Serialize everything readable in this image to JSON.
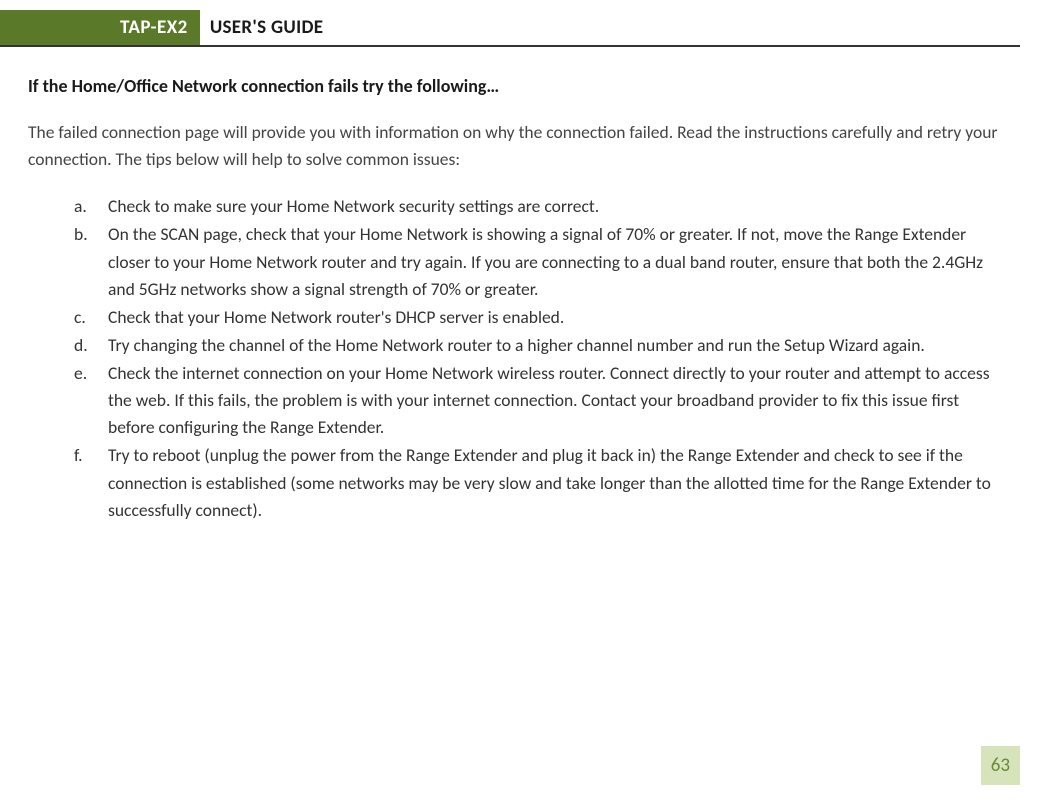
{
  "header": {
    "logo_text": "TAP-EX2",
    "title": "USER'S GUIDE",
    "logo_bg_color": "#5a7a2a",
    "logo_text_color": "#ffffff",
    "underline_color": "#333333"
  },
  "content": {
    "subheading": "If the Home/Office Network connection fails try the following…",
    "intro": "The failed connection page will provide you with information on why the connection failed. Read the instructions carefully and retry your connection. The tips below will help to solve common issues:",
    "list": [
      {
        "marker": "a.",
        "text": "Check to make sure your Home Network security settings are correct."
      },
      {
        "marker": "b.",
        "text": "On the SCAN page, check that your Home Network is showing a signal of 70% or greater. If not, move the Range Extender closer to your Home Network router and try again. If you are connecting to a dual band router, ensure that both the 2.4GHz and 5GHz networks show a signal strength of 70% or greater."
      },
      {
        "marker": "c.",
        "text": "Check that your Home Network router's DHCP server is enabled."
      },
      {
        "marker": "d.",
        "text": "Try changing the channel of the Home Network router to a higher channel number and run the Setup Wizard again."
      },
      {
        "marker": "e.",
        "text": "Check the internet connection on your Home Network wireless router. Connect directly to your router and attempt to access the web.  If this fails, the problem is with your internet connection.  Contact your broadband provider to fix this issue first before configuring the Range Extender."
      },
      {
        "marker": "f.",
        "text": "Try to reboot (unplug the power from the Range Extender and plug it back in) the Range Extender and check to see if the connection is established (some networks may be very slow and take longer than the allotted time for the Range Extender to successfully connect)."
      }
    ]
  },
  "footer": {
    "page_number": "63",
    "box_bg_color": "#d6e3bb",
    "box_text_color": "#6a8a3a"
  }
}
